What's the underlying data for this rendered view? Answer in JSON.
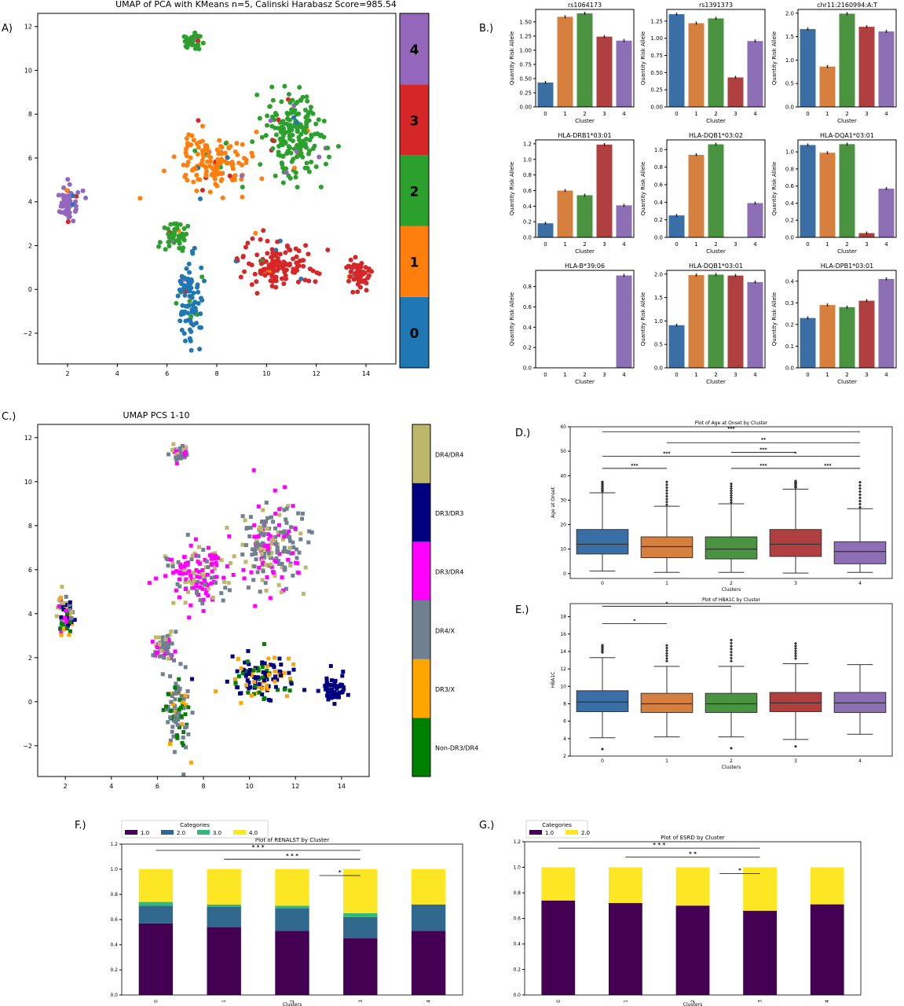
{
  "panel_labels": {
    "a": "A)",
    "b": "B.)",
    "c": "C.)",
    "d": "D.)",
    "e": "E.)",
    "f": "F.)",
    "g": "G.)"
  },
  "chart_data": [
    {
      "id": "A",
      "type": "scatter",
      "title": "UMAP of PCA with KMeans n=5, Calinski Harabasz Score=985.54",
      "xlabel": "",
      "ylabel": "",
      "xlim": [
        0.8,
        15.2
      ],
      "ylim": [
        -3.4,
        12.6
      ],
      "xticks": [
        "2",
        "4",
        "6",
        "8",
        "10",
        "12",
        "14"
      ],
      "yticks": [
        "−2",
        "0",
        "2",
        "4",
        "6",
        "8",
        "10",
        "12"
      ],
      "colorbar": [
        "0",
        "1",
        "2",
        "3",
        "4"
      ],
      "colors": {
        "0": "#1f77b4",
        "1": "#ff7f0e",
        "2": "#2ca02c",
        "3": "#d62728",
        "4": "#9467bd"
      },
      "clusters": [
        {
          "label": "4",
          "x": 2.0,
          "y": 4.0,
          "sx": 0.25,
          "sy": 0.6
        },
        {
          "label": "1",
          "x": 7.8,
          "y": 5.8,
          "sx": 0.9,
          "sy": 0.9
        },
        {
          "label": "2",
          "x": 11.1,
          "y": 7.0,
          "sx": 0.9,
          "sy": 1.3
        },
        {
          "label": "3",
          "x": 10.5,
          "y": 1.2,
          "sx": 0.9,
          "sy": 0.7
        },
        {
          "label": "3",
          "x": 13.7,
          "y": 0.6,
          "sx": 0.35,
          "sy": 0.4
        },
        {
          "label": "0",
          "x": 6.9,
          "y": -0.5,
          "sx": 0.35,
          "sy": 1.1
        },
        {
          "label": "2",
          "x": 7.0,
          "y": 11.3,
          "sx": 0.25,
          "sy": 0.2
        },
        {
          "label": "2",
          "x": 6.3,
          "y": 2.5,
          "sx": 0.3,
          "sy": 0.4
        }
      ]
    },
    {
      "id": "B",
      "type": "bar",
      "xlabel": "Cluster",
      "ylabel": "Quantity Risk Allele",
      "categories": [
        "0",
        "1",
        "2",
        "3",
        "4"
      ],
      "colors": [
        "#3a6fa6",
        "#d5803f",
        "#4a9441",
        "#b0403f",
        "#8c6fb5"
      ],
      "subplots": [
        {
          "title": "rs1064173",
          "values": [
            0.43,
            1.59,
            1.65,
            1.24,
            1.17
          ],
          "ylim": [
            0,
            1.72
          ],
          "yticks": [
            "0.00",
            "0.25",
            "0.50",
            "0.75",
            "1.00",
            "1.25",
            "1.50"
          ],
          "ytickvals": [
            0,
            0.25,
            0.5,
            0.75,
            1.0,
            1.25,
            1.5
          ]
        },
        {
          "title": "rs1391373",
          "values": [
            1.35,
            1.22,
            1.29,
            0.43,
            0.96
          ],
          "ylim": [
            0,
            1.42
          ],
          "yticks": [
            "0.00",
            "0.25",
            "0.50",
            "0.75",
            "1.00",
            "1.25"
          ],
          "ytickvals": [
            0,
            0.25,
            0.5,
            0.75,
            1.0,
            1.25
          ]
        },
        {
          "title": "chr11:2160994:A:T",
          "values": [
            1.66,
            0.86,
            1.99,
            1.71,
            1.61
          ],
          "ylim": [
            0,
            2.08
          ],
          "yticks": [
            "0.0",
            "0.5",
            "1.0",
            "1.5",
            "2.0"
          ],
          "ytickvals": [
            0,
            0.5,
            1.0,
            1.5,
            2.0
          ]
        },
        {
          "title": "HLA-DRB1*03:01",
          "values": [
            0.18,
            0.6,
            0.54,
            1.19,
            0.41
          ],
          "ylim": [
            0,
            1.25
          ],
          "yticks": [
            "0.0",
            "0.2",
            "0.4",
            "0.6",
            "0.8",
            "1.0",
            "1.2"
          ],
          "ytickvals": [
            0,
            0.2,
            0.4,
            0.6,
            0.8,
            1.0,
            1.2
          ]
        },
        {
          "title": "HLA-DQB1*03:02",
          "values": [
            0.25,
            0.94,
            1.06,
            0,
            0.39
          ],
          "ylim": [
            0,
            1.11
          ],
          "yticks": [
            "0.0",
            "0.2",
            "0.4",
            "0.6",
            "0.8",
            "1.0"
          ],
          "ytickvals": [
            0,
            0.2,
            0.4,
            0.6,
            0.8,
            1.0
          ]
        },
        {
          "title": "HLA-DQA1*03:01",
          "values": [
            1.08,
            0.99,
            1.09,
            0.05,
            0.57
          ],
          "ylim": [
            0,
            1.14
          ],
          "yticks": [
            "0.0",
            "0.2",
            "0.4",
            "0.6",
            "0.8",
            "1.0"
          ],
          "ytickvals": [
            0,
            0.2,
            0.4,
            0.6,
            0.8,
            1.0
          ]
        },
        {
          "title": "HLA-B*39:06",
          "values": [
            0,
            0,
            0,
            0,
            0.91
          ],
          "ylim": [
            0,
            0.96
          ],
          "yticks": [
            "0.0",
            "0.2",
            "0.4",
            "0.6",
            "0.8"
          ],
          "ytickvals": [
            0,
            0.2,
            0.4,
            0.6,
            0.8
          ]
        },
        {
          "title": "HLA-DQB1*03:01",
          "values": [
            0.91,
            1.98,
            1.99,
            1.97,
            1.83
          ],
          "ylim": [
            0,
            2.08
          ],
          "yticks": [
            "0.0",
            "0.5",
            "1.0",
            "1.5",
            "2.0"
          ],
          "ytickvals": [
            0,
            0.5,
            1.0,
            1.5,
            2.0
          ]
        },
        {
          "title": "HLA-DPB1*03:01",
          "values": [
            0.23,
            0.29,
            0.28,
            0.31,
            0.41
          ],
          "ylim": [
            0,
            0.45
          ],
          "yticks": [
            "0.0",
            "0.1",
            "0.2",
            "0.3",
            "0.4"
          ],
          "ytickvals": [
            0,
            0.1,
            0.2,
            0.3,
            0.4
          ]
        }
      ]
    },
    {
      "id": "C",
      "type": "scatter",
      "title": "UMAP PCS 1-10",
      "xlabel": "",
      "ylabel": "",
      "xlim": [
        0.8,
        15.2
      ],
      "ylim": [
        -3.4,
        12.6
      ],
      "xticks": [
        "2",
        "4",
        "6",
        "8",
        "10",
        "12",
        "14"
      ],
      "yticks": [
        "−2",
        "0",
        "2",
        "4",
        "6",
        "8",
        "10",
        "12"
      ],
      "colorbar": [
        "Non-DR3/DR4",
        "DR3/X",
        "DR4/X",
        "DR3/DR4",
        "DR3/DR3",
        "DR4/DR4"
      ],
      "colors": {
        "Non-DR3/DR4": "#008000",
        "DR3/X": "#ffa500",
        "DR4/X": "#708090",
        "DR3/DR4": "#ff00ff",
        "DR3/DR3": "#000080",
        "DR4/DR4": "#bdb76b"
      }
    },
    {
      "id": "D",
      "type": "box",
      "title": "Plot of Age at Onset by Cluster",
      "xlabel": "Clusters",
      "ylabel": "Age at Onset",
      "categories": [
        "0",
        "1",
        "2",
        "3",
        "4"
      ],
      "ylim": [
        -2,
        60
      ],
      "yticks": [
        "0",
        "10",
        "20",
        "30",
        "40",
        "50",
        "60"
      ],
      "ytickvals": [
        0,
        10,
        20,
        30,
        40,
        50,
        60
      ],
      "boxes": [
        {
          "q1": 8,
          "median": 12,
          "q3": 18,
          "low": 1,
          "high": 33,
          "fliers_max": 38
        },
        {
          "q1": 6.5,
          "median": 11,
          "q3": 15,
          "low": 0.5,
          "high": 27.5,
          "fliers_max": 38
        },
        {
          "q1": 6,
          "median": 10,
          "q3": 15,
          "low": 0.5,
          "high": 28.5,
          "fliers_max": 37
        },
        {
          "q1": 7,
          "median": 12,
          "q3": 18,
          "low": 0.2,
          "high": 34.5,
          "fliers_max": 38
        },
        {
          "q1": 4,
          "median": 9,
          "q3": 13,
          "low": 0.5,
          "high": 26.5,
          "fliers_max": 38
        }
      ],
      "significance": [
        {
          "from": 0,
          "to": 4,
          "y": 58,
          "label": "***"
        },
        {
          "from": 1,
          "to": 4,
          "y": 53.5,
          "label": "**"
        },
        {
          "from": 2,
          "to": 3,
          "y": 49.5,
          "label": "***"
        },
        {
          "from": 0,
          "to": 2,
          "y": 48,
          "label": "***"
        },
        {
          "from": 2,
          "to": 4,
          "y": 48,
          "label": "*"
        },
        {
          "from": 0,
          "to": 1,
          "y": 43,
          "label": "***"
        },
        {
          "from": 2,
          "to": 3,
          "y": 43,
          "label": "***"
        },
        {
          "from": 3,
          "to": 4,
          "y": 43,
          "label": "***"
        }
      ]
    },
    {
      "id": "E",
      "type": "box",
      "title": "Plot of HBA1C by Cluster",
      "xlabel": "Clusters",
      "ylabel": "HBA1C",
      "categories": [
        "0",
        "1",
        "2",
        "3",
        "4"
      ],
      "ylim": [
        2,
        19.5
      ],
      "yticks": [
        "2",
        "4",
        "6",
        "8",
        "10",
        "12",
        "14",
        "16",
        "18"
      ],
      "ytickvals": [
        2,
        4,
        6,
        8,
        10,
        12,
        14,
        16,
        18
      ],
      "boxes": [
        {
          "q1": 7.1,
          "median": 8.2,
          "q3": 9.5,
          "low": 4.1,
          "high": 13.3,
          "fliers_max": 14.8,
          "fliers_min": 2.8
        },
        {
          "q1": 7.0,
          "median": 8.0,
          "q3": 9.2,
          "low": 4.2,
          "high": 12.3,
          "fliers_max": 15.0
        },
        {
          "q1": 7.0,
          "median": 8.0,
          "q3": 9.2,
          "low": 4.2,
          "high": 12.3,
          "fliers_max": 15.4,
          "fliers_min": 2.9
        },
        {
          "q1": 7.1,
          "median": 8.1,
          "q3": 9.3,
          "low": 3.9,
          "high": 12.6,
          "fliers_max": 15.2,
          "fliers_min": 3.1
        },
        {
          "q1": 7.0,
          "median": 8.1,
          "q3": 9.3,
          "low": 4.5,
          "high": 12.5
        }
      ],
      "significance": [
        {
          "from": 0,
          "to": 2,
          "y": 19.2,
          "label": "*"
        },
        {
          "from": 0,
          "to": 1,
          "y": 17.2,
          "label": "*"
        }
      ]
    },
    {
      "id": "F",
      "type": "bar",
      "stacked": true,
      "title": "Plot of RENALST by Cluster",
      "xlabel": "Clusters",
      "ylabel": "",
      "legend_title": "Categories",
      "categories": [
        "0",
        "1",
        "2",
        "3",
        "4"
      ],
      "ylim": [
        0,
        1.2
      ],
      "yticks": [
        "0.0",
        "0.2",
        "0.4",
        "0.6",
        "0.8",
        "1.0",
        "1.2"
      ],
      "ytickvals": [
        0,
        0.2,
        0.4,
        0.6,
        0.8,
        1.0,
        1.2
      ],
      "series": [
        {
          "name": "1.0",
          "color": "#440154",
          "values": [
            0.57,
            0.54,
            0.51,
            0.45,
            0.51
          ]
        },
        {
          "name": "2.0",
          "color": "#31688e",
          "values": [
            0.14,
            0.16,
            0.18,
            0.17,
            0.21
          ]
        },
        {
          "name": "3.0",
          "color": "#35b779",
          "values": [
            0.03,
            0.02,
            0.02,
            0.03,
            0.0
          ]
        },
        {
          "name": "4.0",
          "color": "#fde725",
          "values": [
            0.26,
            0.28,
            0.29,
            0.35,
            0.28
          ]
        }
      ],
      "significance": [
        {
          "from": 0,
          "to": 3,
          "y": 1.15,
          "label": "* * *"
        },
        {
          "from": 1,
          "to": 3,
          "y": 1.08,
          "label": "* * *"
        },
        {
          "from": 2.4,
          "to": 3,
          "y": 0.95,
          "label": "*"
        }
      ]
    },
    {
      "id": "G",
      "type": "bar",
      "stacked": true,
      "title": "Plot of ESRD by Cluster",
      "xlabel": "Clusters",
      "ylabel": "",
      "legend_title": "Categories",
      "categories": [
        "0",
        "1",
        "2",
        "3",
        "4"
      ],
      "ylim": [
        0,
        1.2
      ],
      "yticks": [
        "0.0",
        "0.2",
        "0.4",
        "0.6",
        "0.8",
        "1.0",
        "1.2"
      ],
      "ytickvals": [
        0,
        0.2,
        0.4,
        0.6,
        0.8,
        1.0,
        1.2
      ],
      "series": [
        {
          "name": "1.0",
          "color": "#440154",
          "values": [
            0.74,
            0.72,
            0.7,
            0.66,
            0.71
          ]
        },
        {
          "name": "2.0",
          "color": "#fde725",
          "values": [
            0.26,
            0.28,
            0.3,
            0.34,
            0.29
          ]
        }
      ],
      "significance": [
        {
          "from": 0,
          "to": 3,
          "y": 1.15,
          "label": "* * *"
        },
        {
          "from": 1,
          "to": 3,
          "y": 1.08,
          "label": "* *"
        },
        {
          "from": 2.4,
          "to": 3,
          "y": 0.95,
          "label": "*"
        }
      ]
    }
  ]
}
